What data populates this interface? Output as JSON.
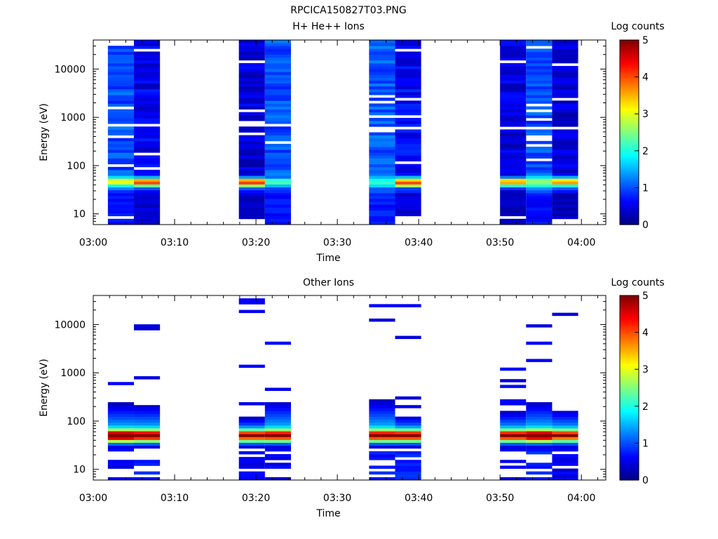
{
  "figure_title": "RPCICA150827T03.PNG",
  "colors": {
    "axis": "#000000",
    "background": "#ffffff"
  },
  "chart_data": [
    {
      "type": "heatmap",
      "title": "H+ He++ Ions",
      "xlabel": "Time",
      "ylabel": "Energy (eV)",
      "colorbar_label": "Log counts",
      "colorbar_ticks": [
        "0",
        "1",
        "2",
        "3",
        "4",
        "5"
      ],
      "x_ticks": [
        "03:00",
        "03:10",
        "03:20",
        "03:30",
        "03:40",
        "03:50",
        "04:00"
      ],
      "y_ticks": [
        "10",
        "100",
        "1000",
        "10000"
      ],
      "yscale": "log",
      "ylim": [
        6,
        40000
      ],
      "xlim_minutes": [
        0,
        63
      ],
      "zlim": [
        0,
        5
      ],
      "columns": [
        {
          "start": 1.8,
          "end": 5.0,
          "base": 1.0,
          "peak": 3.2
        },
        {
          "start": 5.0,
          "end": 8.2,
          "base": 0.55,
          "peak": 4.2
        },
        {
          "start": 17.9,
          "end": 21.1,
          "base": 0.45,
          "peak": 4.3
        },
        {
          "start": 21.1,
          "end": 24.3,
          "base": 1.0,
          "peak": 2.4
        },
        {
          "start": 33.9,
          "end": 37.1,
          "base": 1.05,
          "peak": 2.3
        },
        {
          "start": 37.1,
          "end": 40.3,
          "base": 0.6,
          "peak": 4.3
        },
        {
          "start": 50.0,
          "end": 53.2,
          "base": 0.45,
          "peak": 3.8
        },
        {
          "start": 53.2,
          "end": 56.4,
          "base": 1.0,
          "peak": 2.8
        },
        {
          "start": 56.4,
          "end": 59.6,
          "base": 0.45,
          "peak": 3.9
        }
      ]
    },
    {
      "type": "heatmap",
      "title": "Other Ions",
      "xlabel": "Time",
      "ylabel": "Energy (eV)",
      "colorbar_label": "Log counts",
      "colorbar_ticks": [
        "0",
        "1",
        "2",
        "3",
        "4",
        "5"
      ],
      "x_ticks": [
        "03:00",
        "03:10",
        "03:20",
        "03:30",
        "03:40",
        "03:50",
        "04:00"
      ],
      "y_ticks": [
        "10",
        "100",
        "1000",
        "10000"
      ],
      "yscale": "log",
      "ylim": [
        6,
        40000
      ],
      "xlim_minutes": [
        0,
        63
      ],
      "zlim": [
        0,
        5
      ],
      "columns": [
        {
          "start": 1.8,
          "end": 5.0,
          "base": 0.4,
          "peak": 4.9,
          "max_energy": 230
        },
        {
          "start": 5.0,
          "end": 8.2,
          "base": 0.6,
          "peak": 4.5,
          "max_energy": 220
        },
        {
          "start": 17.9,
          "end": 21.1,
          "base": 0.4,
          "peak": 4.2,
          "max_energy": 120
        },
        {
          "start": 21.1,
          "end": 24.3,
          "base": 0.4,
          "peak": 4.3,
          "max_energy": 260
        },
        {
          "start": 33.9,
          "end": 37.1,
          "base": 0.6,
          "peak": 4.3,
          "max_energy": 270
        },
        {
          "start": 37.1,
          "end": 40.3,
          "base": 0.6,
          "peak": 4.3,
          "max_energy": 130
        },
        {
          "start": 50.0,
          "end": 53.2,
          "base": 0.4,
          "peak": 4.3,
          "max_energy": 160
        },
        {
          "start": 53.2,
          "end": 56.4,
          "base": 0.6,
          "peak": 4.8,
          "max_energy": 250
        },
        {
          "start": 56.4,
          "end": 59.6,
          "base": 0.4,
          "peak": 4.1,
          "max_energy": 170
        }
      ]
    }
  ]
}
